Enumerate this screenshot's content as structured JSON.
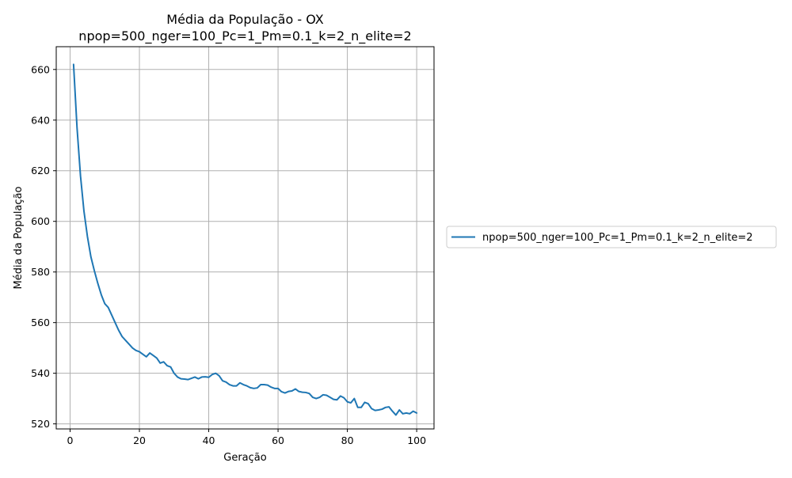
{
  "colors": {
    "series": "#1f77b4",
    "grid": "#b0b0b0",
    "axes": "#000000"
  },
  "chart_data": {
    "type": "line",
    "title": "Média da População - OX",
    "subtitle": "npop=500_nger=100_Pc=1_Pm=0.1_k=2_n_elite=2",
    "xlabel": "Geração",
    "ylabel": "Média da População",
    "xlim": [
      -4,
      105
    ],
    "ylim": [
      518,
      669
    ],
    "xticks": [
      0,
      20,
      40,
      60,
      80,
      100
    ],
    "yticks": [
      520,
      540,
      560,
      580,
      600,
      620,
      640,
      660
    ],
    "grid": true,
    "legend_position": "outside-right",
    "series": [
      {
        "name": "npop=500_nger=100_Pc=1_Pm=0.1_k=2_n_elite=2",
        "x": [
          1,
          2,
          3,
          4,
          5,
          6,
          7,
          8,
          9,
          10,
          11,
          12,
          13,
          14,
          15,
          16,
          17,
          18,
          19,
          20,
          21,
          22,
          23,
          24,
          25,
          26,
          27,
          28,
          29,
          30,
          31,
          32,
          33,
          34,
          35,
          36,
          37,
          38,
          39,
          40,
          41,
          42,
          43,
          44,
          45,
          46,
          47,
          48,
          49,
          50,
          51,
          52,
          53,
          54,
          55,
          56,
          57,
          58,
          59,
          60,
          61,
          62,
          63,
          64,
          65,
          66,
          67,
          68,
          69,
          70,
          71,
          72,
          73,
          74,
          75,
          76,
          77,
          78,
          79,
          80,
          81,
          82,
          83,
          84,
          85,
          86,
          87,
          88,
          89,
          90,
          91,
          92,
          93,
          94,
          95,
          96,
          97,
          98,
          99,
          100
        ],
        "y": [
          662,
          637,
          618,
          604,
          594,
          586,
          580.5,
          575.5,
          571,
          567.5,
          566,
          563,
          560,
          557,
          554.5,
          553,
          551.5,
          550,
          549,
          548.5,
          547.5,
          546.5,
          548,
          547,
          546,
          544,
          544.5,
          543,
          542.5,
          540,
          538.5,
          537.8,
          537.7,
          537.5,
          538,
          538.5,
          537.8,
          538.5,
          538.6,
          538.4,
          539.5,
          540,
          539,
          537,
          536.5,
          535.5,
          535,
          535,
          536.2,
          535.5,
          535,
          534.3,
          534,
          534.2,
          535.5,
          535.5,
          535.3,
          534.5,
          534,
          534,
          532.7,
          532.2,
          532.8,
          533,
          533.8,
          532.8,
          532.5,
          532.4,
          532,
          530.5,
          530,
          530.5,
          531.5,
          531.3,
          530.5,
          529.7,
          529.5,
          531,
          530.3,
          528.7,
          528.3,
          530,
          526.5,
          526.5,
          528.5,
          528,
          526,
          525.3,
          525.5,
          525.8,
          526.5,
          526.7,
          525,
          523.5,
          525.5,
          524,
          524.3,
          524,
          525,
          524.3
        ]
      }
    ]
  }
}
